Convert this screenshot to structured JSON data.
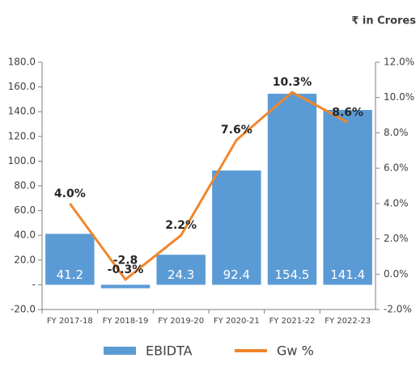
{
  "chart_data": {
    "type": "bar",
    "annotation": "₹ in Crores",
    "categories": [
      "FY 2017-18",
      "FY 2018-19",
      "FY 2019-20",
      "FY 2020-21",
      "FY 2021-22",
      "FY 2022-23"
    ],
    "series": [
      {
        "name": "EBIDTA",
        "type": "bar",
        "color": "#5b9bd5",
        "values": [
          41.2,
          -2.8,
          24.3,
          92.4,
          154.5,
          141.4
        ]
      },
      {
        "name": "Gw %",
        "type": "line",
        "axis": "y2",
        "color": "#f0862a",
        "values": [
          4.0,
          -0.3,
          2.2,
          7.6,
          10.3,
          8.6
        ],
        "value_labels": [
          "4.0%",
          "-0.3%",
          "2.2%",
          "7.6%",
          "10.3%",
          "8.6%"
        ]
      }
    ],
    "ylim": [
      -20,
      180
    ],
    "yticks": [
      {
        "value": -20,
        "label": "-20.0"
      },
      {
        "value": 0,
        "label": "-"
      },
      {
        "value": 20,
        "label": "20.0"
      },
      {
        "value": 40,
        "label": "40.0"
      },
      {
        "value": 60,
        "label": "60.0"
      },
      {
        "value": 80,
        "label": "80.0"
      },
      {
        "value": 100,
        "label": "100.0"
      },
      {
        "value": 120,
        "label": "120.0"
      },
      {
        "value": 140,
        "label": "140.0"
      },
      {
        "value": 160,
        "label": "160.0"
      },
      {
        "value": 180,
        "label": "180.0"
      }
    ],
    "y2lim": [
      -2,
      12
    ],
    "y2ticks": [
      {
        "value": -2,
        "label": "-2.0%"
      },
      {
        "value": 0,
        "label": "0.0%"
      },
      {
        "value": 2,
        "label": "2.0%"
      },
      {
        "value": 4,
        "label": "4.0%"
      },
      {
        "value": 6,
        "label": "6.0%"
      },
      {
        "value": 8,
        "label": "8.0%"
      },
      {
        "value": 10,
        "label": "10.0%"
      },
      {
        "value": 12,
        "label": "12.0%"
      }
    ],
    "legend": "bottom"
  }
}
